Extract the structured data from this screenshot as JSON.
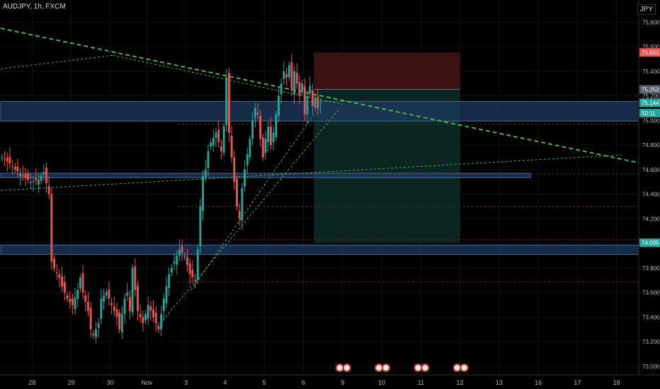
{
  "header": {
    "symbol_label": "AUDJPY, 1h, FXCM",
    "currency_badge": "JPY"
  },
  "colors": {
    "background": "#000000",
    "bull": "#26a69a",
    "bear": "#ef5350",
    "zone": "#1e3a5f",
    "trendline": "#4caf50",
    "stop_zone": "#3b1111",
    "target_zone": "#0c2a26"
  },
  "chart_data": {
    "type": "candlestick",
    "title": "AUDJPY, 1h, FXCM",
    "y_ticks": [
      73.0,
      73.2,
      73.4,
      73.6,
      73.8,
      74.0,
      74.2,
      74.4,
      74.6,
      74.8,
      75.0,
      75.2,
      75.4,
      75.6,
      75.8
    ],
    "y_tick_labels": [
      "73.000",
      "73.200",
      "73.400",
      "73.600",
      "73.800",
      "74.000",
      "74.200",
      "74.400",
      "74.600",
      "74.800",
      "75.000",
      "75.200",
      "75.400",
      "75.600",
      "75.800"
    ],
    "ylim": [
      72.93,
      75.98
    ],
    "x_labels": [
      {
        "label": "28",
        "bar": 12
      },
      {
        "label": "29",
        "bar": 27
      },
      {
        "label": "30",
        "bar": 42
      },
      {
        "label": "Nov",
        "bar": 56
      },
      {
        "label": "3",
        "bar": 71
      },
      {
        "label": "4",
        "bar": 86
      },
      {
        "label": "5",
        "bar": 101
      },
      {
        "label": "6",
        "bar": 116
      },
      {
        "label": "9",
        "bar": 131
      },
      {
        "label": "10",
        "bar": 146
      },
      {
        "label": "11",
        "bar": 161
      },
      {
        "label": "12",
        "bar": 176
      },
      {
        "label": "13",
        "bar": 191
      },
      {
        "label": "16",
        "bar": 206
      },
      {
        "label": "17",
        "bar": 221
      },
      {
        "label": "18",
        "bar": 236
      }
    ],
    "price_labels": [
      {
        "text": "75.553",
        "value": 75.553,
        "color": "#ef5350"
      },
      {
        "text": "75.253",
        "value": 75.253,
        "color": "#555d6b"
      },
      {
        "text": "75.144",
        "value": 75.144,
        "color": "#26a69a"
      },
      {
        "text": "50:11",
        "value": 75.06,
        "color": "#26a69a"
      },
      {
        "text": "74.005",
        "value": 74.005,
        "color": "#26a69a"
      }
    ],
    "zones": [
      {
        "from": 74.995,
        "to": 75.155,
        "start_bar": 0,
        "end_bar": 248
      },
      {
        "from": 74.535,
        "to": 74.57,
        "start_bar": 0,
        "end_bar": 203
      },
      {
        "from": 73.91,
        "to": 73.985,
        "start_bar": 0,
        "end_bar": 248
      }
    ],
    "position": {
      "start_bar": 120,
      "end_bar": 176,
      "entry": 75.253,
      "stop": 75.553,
      "target": 74.005
    },
    "dashed_levels": [
      74.97,
      74.565,
      74.3,
      74.03,
      73.685
    ],
    "trendlines": [
      {
        "from": {
          "bar": 0,
          "price": 75.75
        },
        "to": {
          "bar": 248,
          "price": 74.64
        },
        "style": "thick"
      },
      {
        "from": {
          "bar": 0,
          "price": 75.42
        },
        "to": {
          "bar": 43,
          "price": 75.53
        },
        "style": "thin"
      },
      {
        "from": {
          "bar": 43,
          "price": 75.53
        },
        "to": {
          "bar": 131,
          "price": 75.13
        },
        "style": "thin"
      },
      {
        "from": {
          "bar": 0,
          "price": 74.43
        },
        "to": {
          "bar": 238,
          "price": 74.72
        },
        "style": "thin"
      },
      {
        "from": {
          "bar": 60,
          "price": 73.32
        },
        "to": {
          "bar": 130,
          "price": 75.1
        },
        "style": "thin"
      },
      {
        "from": {
          "bar": 73,
          "price": 73.62
        },
        "to": {
          "bar": 120,
          "price": 75.05
        },
        "style": "thin"
      }
    ],
    "event_icons": [
      {
        "bar": 131,
        "count": 2
      },
      {
        "bar": 146,
        "count": 2
      },
      {
        "bar": 161,
        "count": 2
      },
      {
        "bar": 176,
        "count": 2
      }
    ],
    "close_points": [
      [
        0,
        74.7
      ],
      [
        3,
        74.65
      ],
      [
        5,
        74.6
      ],
      [
        8,
        74.55
      ],
      [
        11,
        74.5
      ],
      [
        14,
        74.52
      ],
      [
        16,
        74.58
      ],
      [
        18,
        74.4
      ],
      [
        19,
        73.85
      ],
      [
        20,
        73.8
      ],
      [
        22,
        73.72
      ],
      [
        23,
        73.65
      ],
      [
        25,
        73.55
      ],
      [
        27,
        73.5
      ],
      [
        29,
        73.62
      ],
      [
        30,
        73.72
      ],
      [
        31,
        73.6
      ],
      [
        33,
        73.45
      ],
      [
        34,
        73.3
      ],
      [
        35,
        73.25
      ],
      [
        37,
        73.35
      ],
      [
        38,
        73.55
      ],
      [
        40,
        73.6
      ],
      [
        42,
        73.5
      ],
      [
        44,
        73.4
      ],
      [
        45,
        73.3
      ],
      [
        47,
        73.55
      ],
      [
        48,
        73.6
      ],
      [
        49,
        73.45
      ],
      [
        50,
        73.8
      ],
      [
        51,
        73.62
      ],
      [
        52,
        73.45
      ],
      [
        54,
        73.35
      ],
      [
        56,
        73.5
      ],
      [
        58,
        73.4
      ],
      [
        60,
        73.3
      ],
      [
        62,
        73.55
      ],
      [
        64,
        73.75
      ],
      [
        66,
        73.85
      ],
      [
        68,
        73.95
      ],
      [
        70,
        73.9
      ],
      [
        72,
        73.75
      ],
      [
        74,
        73.7
      ],
      [
        75,
        73.95
      ],
      [
        76,
        74.3
      ],
      [
        77,
        74.55
      ],
      [
        78,
        74.6
      ],
      [
        79,
        74.75
      ],
      [
        80,
        74.82
      ],
      [
        82,
        74.9
      ],
      [
        84,
        74.75
      ],
      [
        85,
        74.95
      ],
      [
        86,
        75.35
      ],
      [
        87,
        74.9
      ],
      [
        88,
        74.7
      ],
      [
        89,
        74.5
      ],
      [
        90,
        74.3
      ],
      [
        91,
        74.2
      ],
      [
        92,
        74.45
      ],
      [
        93,
        74.6
      ],
      [
        95,
        74.85
      ],
      [
        96,
        75.0
      ],
      [
        97,
        75.1
      ],
      [
        98,
        75.05
      ],
      [
        99,
        74.85
      ],
      [
        100,
        74.7
      ],
      [
        101,
        74.85
      ],
      [
        102,
        74.95
      ],
      [
        103,
        74.8
      ],
      [
        104,
        74.9
      ],
      [
        105,
        75.05
      ],
      [
        106,
        75.2
      ],
      [
        107,
        75.3
      ],
      [
        108,
        75.4
      ],
      [
        109,
        75.35
      ],
      [
        110,
        75.45
      ],
      [
        111,
        75.25
      ],
      [
        112,
        75.4
      ],
      [
        113,
        75.3
      ],
      [
        114,
        75.2
      ],
      [
        115,
        75.3
      ],
      [
        116,
        75.05
      ],
      [
        117,
        75.2
      ],
      [
        118,
        75.28
      ],
      [
        119,
        75.12
      ],
      [
        120,
        75.18
      ],
      [
        121,
        75.1
      ],
      [
        122,
        75.14
      ]
    ]
  }
}
